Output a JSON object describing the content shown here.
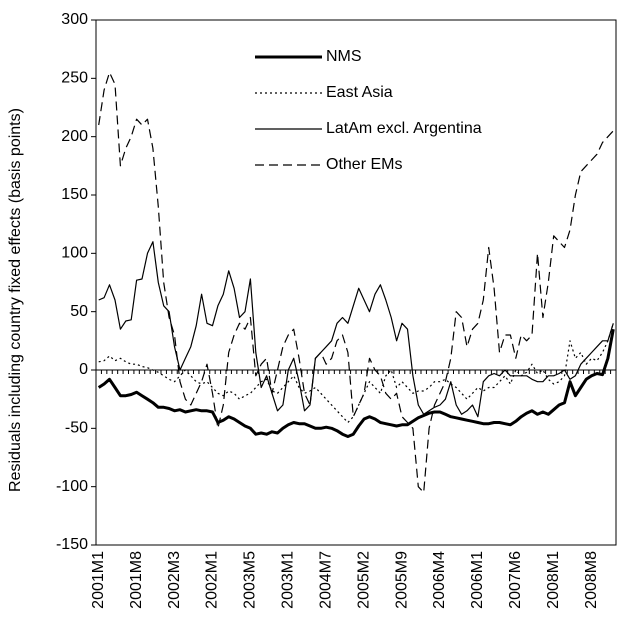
{
  "chart_data": {
    "type": "line",
    "y_label": "Residuals including country fixed effects (basis points)",
    "categories": [
      "2001M1",
      null,
      null,
      null,
      null,
      null,
      null,
      "2001M8",
      null,
      null,
      null,
      null,
      null,
      null,
      "2002M3",
      null,
      null,
      null,
      null,
      null,
      null,
      "2002M1",
      null,
      null,
      null,
      null,
      null,
      null,
      "2003M5",
      null,
      null,
      null,
      null,
      null,
      null,
      "2003M1",
      null,
      null,
      null,
      null,
      null,
      null,
      "2004M7",
      null,
      null,
      null,
      null,
      null,
      null,
      "2005M2",
      null,
      null,
      null,
      null,
      null,
      null,
      "2005M9",
      null,
      null,
      null,
      null,
      null,
      null,
      "2006M4",
      null,
      null,
      null,
      null,
      null,
      null,
      "2006M1",
      null,
      null,
      null,
      null,
      null,
      null,
      "2007M6",
      null,
      null,
      null,
      null,
      null,
      null,
      "2008M1",
      null,
      null,
      null,
      null,
      null,
      null,
      "2008M8",
      null,
      null,
      null,
      null
    ],
    "ylim": [
      -150,
      300
    ],
    "yticks": [
      -150,
      -100,
      -50,
      0,
      50,
      100,
      150,
      200,
      250,
      300
    ],
    "series": [
      {
        "name": "NMS",
        "color": "#000000",
        "width": 3,
        "dash": "none",
        "values": [
          -15,
          -12,
          -8,
          -15,
          -22,
          -22,
          -21,
          -19,
          -22,
          -25,
          -28,
          -32,
          -32,
          -33,
          -35,
          -34,
          -36,
          -35,
          -34,
          -35,
          -35,
          -36,
          -45,
          -43,
          -40,
          -42,
          -45,
          -48,
          -50,
          -55,
          -54,
          -55,
          -53,
          -54,
          -50,
          -47,
          -45,
          -46,
          -46,
          -48,
          -50,
          -50,
          -49,
          -50,
          -52,
          -55,
          -57,
          -55,
          -48,
          -42,
          -40,
          -42,
          -45,
          -46,
          -47,
          -48,
          -47,
          -47,
          -44,
          -41,
          -39,
          -37,
          -36,
          -36,
          -38,
          -40,
          -41,
          -42,
          -43,
          -44,
          -45,
          -46,
          -46,
          -45,
          -45,
          -46,
          -47,
          -44,
          -40,
          -37,
          -35,
          -38,
          -36,
          -38,
          -34,
          -30,
          -28,
          -10,
          -22,
          -15,
          -8,
          -5,
          -3,
          -4,
          10,
          35
        ]
      },
      {
        "name": "East Asia",
        "color": "#000000",
        "width": 1.2,
        "dash": "2 3",
        "values": [
          7,
          8,
          12,
          8,
          10,
          7,
          5,
          5,
          3,
          2,
          0,
          -2,
          -5,
          -8,
          -10,
          -5,
          0,
          -5,
          -10,
          -12,
          -10,
          -15,
          -20,
          -22,
          -18,
          -20,
          -25,
          -22,
          -20,
          -15,
          -10,
          -8,
          -18,
          -20,
          -15,
          -10,
          -5,
          -15,
          -20,
          -18,
          -15,
          -20,
          -25,
          -30,
          -35,
          -40,
          -45,
          -40,
          -30,
          -20,
          -10,
          -15,
          -20,
          -5,
          0,
          -15,
          -10,
          -15,
          -20,
          -18,
          -18,
          -15,
          -10,
          -10,
          -8,
          -12,
          -15,
          -20,
          -25,
          -20,
          -15,
          -18,
          -15,
          -15,
          -10,
          -5,
          -12,
          0,
          -5,
          -2,
          5,
          -3,
          0,
          -8,
          -12,
          -10,
          -5,
          25,
          10,
          15,
          5,
          10,
          8,
          15,
          25,
          40
        ]
      },
      {
        "name": "LatAm excl. Argentina",
        "color": "#000000",
        "width": 1.2,
        "dash": "none",
        "values": [
          60,
          62,
          73,
          60,
          35,
          42,
          43,
          77,
          78,
          100,
          110,
          75,
          55,
          50,
          20,
          0,
          10,
          20,
          38,
          65,
          40,
          38,
          55,
          65,
          85,
          70,
          45,
          50,
          78,
          15,
          -15,
          -5,
          -20,
          -35,
          -30,
          0,
          10,
          -10,
          -35,
          -30,
          10,
          15,
          20,
          25,
          40,
          45,
          40,
          55,
          70,
          60,
          50,
          65,
          73,
          60,
          45,
          25,
          40,
          35,
          -5,
          -30,
          -38,
          -35,
          -32,
          -30,
          -25,
          -10,
          -30,
          -38,
          -35,
          -30,
          -40,
          -10,
          -5,
          -3,
          -5,
          0,
          -5,
          -5,
          -5,
          -5,
          -8,
          -10,
          -10,
          -5,
          -5,
          -3,
          0,
          -8,
          -5,
          5,
          10,
          15,
          20,
          25,
          25,
          40
        ]
      },
      {
        "name": "Other EMs",
        "color": "#000000",
        "width": 1.2,
        "dash": "9 5",
        "values": [
          210,
          240,
          255,
          245,
          175,
          190,
          200,
          215,
          210,
          215,
          190,
          140,
          75,
          45,
          30,
          -10,
          -25,
          -30,
          -20,
          -10,
          5,
          -20,
          -50,
          -30,
          15,
          30,
          40,
          35,
          45,
          -5,
          5,
          10,
          -20,
          0,
          20,
          30,
          35,
          10,
          -20,
          -30,
          10,
          15,
          5,
          10,
          25,
          30,
          15,
          -40,
          -30,
          -20,
          10,
          0,
          -5,
          -20,
          -25,
          -20,
          -40,
          -45,
          -50,
          -100,
          -105,
          -50,
          -30,
          -20,
          -10,
          10,
          50,
          45,
          20,
          35,
          40,
          60,
          105,
          70,
          15,
          30,
          30,
          10,
          30,
          25,
          30,
          100,
          45,
          75,
          115,
          110,
          105,
          120,
          150,
          170,
          175,
          180,
          185,
          195,
          200,
          205
        ]
      }
    ]
  }
}
